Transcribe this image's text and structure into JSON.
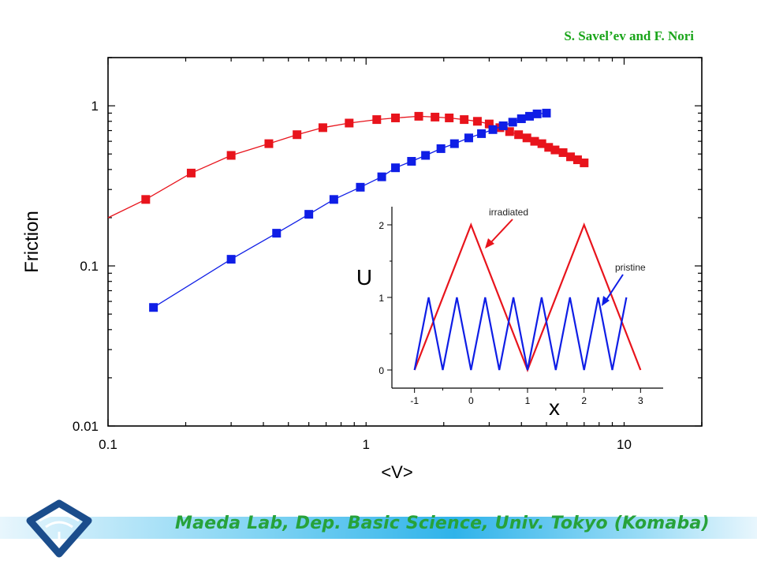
{
  "credit": "S. Savel’ev and F. Nori",
  "footer": {
    "text": "Maeda Lab, Dep. Basic Science, Univ. Tokyo (Komaba)",
    "bar_color": "#2fb3ea",
    "text_color": "#27a23a"
  },
  "logo": {
    "icon": "lab-logo-icon",
    "color": "#1b4d8c"
  },
  "chart_data": [
    {
      "type": "scatter",
      "xscale": "log",
      "yscale": "log",
      "xlabel": "<V>",
      "ylabel": "Friction",
      "xlim": [
        0.1,
        20
      ],
      "ylim": [
        0.01,
        2
      ],
      "xticks": [
        0.1,
        1,
        10
      ],
      "xtick_labels": [
        "0.1",
        "1",
        "10"
      ],
      "yticks": [
        0.01,
        0.1,
        1
      ],
      "ytick_labels": [
        "0.01",
        "0.1",
        "1"
      ],
      "grid": false,
      "series": [
        {
          "color": "#e8141c",
          "marker": "square",
          "points": [
            [
              0.14,
              0.26
            ],
            [
              0.21,
              0.38
            ],
            [
              0.3,
              0.49
            ],
            [
              0.42,
              0.58
            ],
            [
              0.54,
              0.66
            ],
            [
              0.68,
              0.73
            ],
            [
              0.86,
              0.78
            ],
            [
              1.1,
              0.82
            ],
            [
              1.3,
              0.84
            ],
            [
              1.6,
              0.86
            ],
            [
              1.85,
              0.85
            ],
            [
              2.1,
              0.84
            ],
            [
              2.4,
              0.82
            ],
            [
              2.7,
              0.8
            ],
            [
              3.0,
              0.77
            ],
            [
              3.3,
              0.73
            ],
            [
              3.6,
              0.69
            ],
            [
              3.9,
              0.66
            ],
            [
              4.2,
              0.63
            ],
            [
              4.5,
              0.6
            ],
            [
              4.8,
              0.58
            ],
            [
              5.1,
              0.55
            ],
            [
              5.4,
              0.53
            ],
            [
              5.8,
              0.51
            ],
            [
              6.2,
              0.48
            ],
            [
              6.6,
              0.46
            ],
            [
              7.0,
              0.44
            ]
          ],
          "curve": [
            [
              0.1,
              0.2
            ],
            [
              0.14,
              0.26
            ],
            [
              0.21,
              0.38
            ],
            [
              0.3,
              0.49
            ],
            [
              0.42,
              0.58
            ],
            [
              0.54,
              0.66
            ],
            [
              0.68,
              0.73
            ],
            [
              0.86,
              0.78
            ],
            [
              1.1,
              0.82
            ],
            [
              1.3,
              0.84
            ],
            [
              1.6,
              0.86
            ],
            [
              1.85,
              0.85
            ],
            [
              2.1,
              0.84
            ],
            [
              2.4,
              0.82
            ],
            [
              2.7,
              0.8
            ],
            [
              3.0,
              0.77
            ],
            [
              3.3,
              0.73
            ],
            [
              3.6,
              0.69
            ],
            [
              3.9,
              0.66
            ],
            [
              4.2,
              0.63
            ],
            [
              4.5,
              0.6
            ],
            [
              4.8,
              0.58
            ],
            [
              5.1,
              0.55
            ],
            [
              5.4,
              0.53
            ],
            [
              5.8,
              0.51
            ],
            [
              6.2,
              0.48
            ],
            [
              6.6,
              0.46
            ],
            [
              7.0,
              0.44
            ]
          ]
        },
        {
          "color": "#0f1ee6",
          "marker": "square",
          "points": [
            [
              0.15,
              0.055
            ],
            [
              0.3,
              0.11
            ],
            [
              0.45,
              0.16
            ],
            [
              0.6,
              0.21
            ],
            [
              0.75,
              0.26
            ],
            [
              0.95,
              0.31
            ],
            [
              1.15,
              0.36
            ],
            [
              1.3,
              0.41
            ],
            [
              1.5,
              0.45
            ],
            [
              1.7,
              0.49
            ],
            [
              1.95,
              0.54
            ],
            [
              2.2,
              0.58
            ],
            [
              2.5,
              0.63
            ],
            [
              2.8,
              0.67
            ],
            [
              3.1,
              0.71
            ],
            [
              3.4,
              0.75
            ],
            [
              3.7,
              0.79
            ],
            [
              4.0,
              0.83
            ],
            [
              4.3,
              0.86
            ],
            [
              4.6,
              0.89
            ],
            [
              5.0,
              0.9
            ]
          ],
          "curve": [
            [
              0.15,
              0.055
            ],
            [
              0.3,
              0.11
            ],
            [
              0.45,
              0.16
            ],
            [
              0.6,
              0.21
            ],
            [
              0.75,
              0.26
            ],
            [
              0.95,
              0.31
            ],
            [
              1.15,
              0.36
            ],
            [
              1.3,
              0.41
            ],
            [
              1.5,
              0.45
            ],
            [
              1.7,
              0.49
            ],
            [
              1.95,
              0.54
            ],
            [
              2.2,
              0.58
            ],
            [
              2.5,
              0.63
            ],
            [
              2.8,
              0.67
            ],
            [
              3.1,
              0.71
            ],
            [
              3.4,
              0.75
            ],
            [
              3.7,
              0.79
            ],
            [
              4.0,
              0.83
            ],
            [
              4.3,
              0.86
            ],
            [
              4.6,
              0.89
            ],
            [
              5.0,
              0.9
            ]
          ]
        }
      ]
    },
    {
      "type": "line",
      "xlabel": "x",
      "ylabel": "U",
      "xlim": [
        -1.4,
        3.4
      ],
      "ylim": [
        -0.25,
        2.25
      ],
      "xticks": [
        -1,
        0,
        1,
        2,
        3
      ],
      "xtick_labels": [
        "-1",
        "0",
        "1",
        "2",
        "3"
      ],
      "yticks": [
        0,
        1,
        2
      ],
      "ytick_labels": [
        "0",
        "1",
        "2"
      ],
      "grid": false,
      "annotations": [
        {
          "text": "irradiated",
          "color": "#e8141c"
        },
        {
          "text": "pristine",
          "color": "#0f1ee6"
        }
      ],
      "series": [
        {
          "name": "irradiated",
          "color": "#e8141c",
          "x": [
            -1,
            0,
            1,
            2,
            3
          ],
          "y": [
            0,
            2,
            0,
            2,
            0
          ]
        },
        {
          "name": "pristine",
          "color": "#0f1ee6",
          "x": [
            -1,
            -0.75,
            -0.5,
            -0.25,
            0,
            0.25,
            0.5,
            0.75,
            1,
            1.25,
            1.5,
            1.75,
            2,
            2.25,
            2.5,
            2.75
          ],
          "y": [
            0,
            1,
            0,
            1,
            0,
            1,
            0,
            1,
            0,
            1,
            0,
            1,
            0,
            1,
            0,
            1
          ]
        }
      ]
    }
  ]
}
